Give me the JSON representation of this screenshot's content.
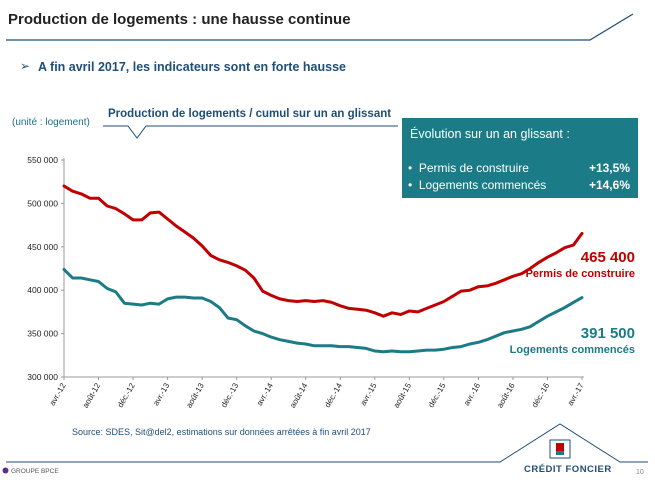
{
  "header": {
    "title": "Production de logements : une hausse continue",
    "subtitle": "A fin avril 2017, les indicateurs sont en forte hausse"
  },
  "chart": {
    "unit_note": "(unité : logement)",
    "title": "Production de logements / cumul sur un an glissant"
  },
  "infobox": {
    "heading": "Évolution sur un an glissant :",
    "rows": [
      {
        "label": "Permis de construire",
        "value": "+13,5%"
      },
      {
        "label": "Logements commencés",
        "value": "+14,6%"
      }
    ]
  },
  "annotations": {
    "permis_value": "465 400",
    "permis_label": "Permis de construire",
    "commences_value": "391 500",
    "commences_label": "Logements commencés"
  },
  "source": "Source: SDES, Sit@del2, estimations sur données arrêtées à fin avril 2017",
  "footer": {
    "left": "GROUPE BPCE",
    "logo_text": "CRÉDIT FONCIER",
    "page_number": "10"
  },
  "colors": {
    "permis": "#c00000",
    "commences": "#1b7b86",
    "header_rule": "#1f4e79",
    "infobox_bg": "#1b7b86"
  },
  "chart_data": {
    "type": "line",
    "title": "Production de logements / cumul sur un an glissant",
    "ylabel": "(unité : logement)",
    "ylim": [
      300000,
      550000
    ],
    "yticks": [
      300000,
      350000,
      400000,
      450000,
      500000,
      550000
    ],
    "ytick_labels": [
      "300 000",
      "350 000",
      "400 000",
      "450 000",
      "500 000",
      "550 000"
    ],
    "xtick_labels": [
      "avr.-12",
      "août-12",
      "déc.-12",
      "avr.-13",
      "août-13",
      "déc.-13",
      "avr.-14",
      "août-14",
      "déc.-14",
      "avr.-15",
      "août-15",
      "déc.-15",
      "avr.-16",
      "août-16",
      "déc.-16",
      "avr.-17"
    ],
    "x_start": "2012-04",
    "x_end": "2017-04",
    "series": [
      {
        "name": "Permis de construire",
        "color": "#c00000",
        "values": [
          520000,
          514000,
          511000,
          506000,
          506000,
          497000,
          494000,
          488000,
          481000,
          481000,
          489000,
          490000,
          482000,
          474000,
          467000,
          460000,
          451000,
          440000,
          435000,
          432000,
          428000,
          423000,
          414000,
          399000,
          394000,
          390000,
          388000,
          387000,
          388000,
          387000,
          388000,
          386000,
          382000,
          379000,
          378000,
          377000,
          374000,
          370000,
          374000,
          372000,
          376000,
          375000,
          379000,
          383000,
          387000,
          393000,
          399000,
          400000,
          404000,
          405000,
          408000,
          412000,
          416000,
          419000,
          425000,
          432000,
          438000,
          443000,
          449000,
          452000,
          465400
        ]
      },
      {
        "name": "Logements commencés",
        "color": "#1b7b86",
        "values": [
          424000,
          414000,
          414000,
          412000,
          410000,
          402000,
          398000,
          385000,
          384000,
          383000,
          385000,
          384000,
          390000,
          392000,
          392000,
          391000,
          391000,
          387000,
          380000,
          368000,
          366000,
          359000,
          353000,
          350000,
          346000,
          343000,
          341000,
          339000,
          338000,
          336000,
          336000,
          336000,
          335000,
          335000,
          334000,
          333000,
          330000,
          329000,
          330000,
          329000,
          329000,
          330000,
          331000,
          331000,
          332000,
          334000,
          335000,
          338000,
          340000,
          343000,
          347000,
          351000,
          353000,
          355000,
          358000,
          364000,
          370000,
          375000,
          380000,
          386000,
          391500
        ]
      }
    ],
    "annotations": [
      {
        "series": "Permis de construire",
        "text": "465 400"
      },
      {
        "series": "Logements commencés",
        "text": "391 500"
      }
    ],
    "grid": false,
    "legend": "none"
  }
}
